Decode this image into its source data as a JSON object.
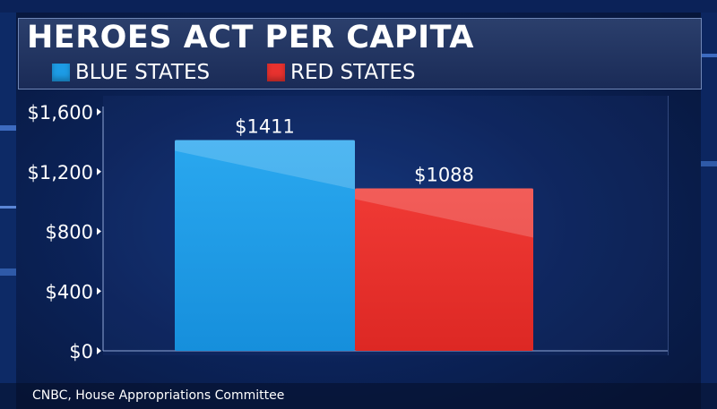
{
  "chart_data": {
    "type": "bar",
    "title": "HEROES ACT PER CAPITA",
    "categories": [
      "BLUE STATES",
      "RED STATES"
    ],
    "values": [
      1411,
      1088
    ],
    "value_labels": [
      "$1411",
      "$1088"
    ],
    "yticks": [
      0,
      400,
      800,
      1200,
      1600
    ],
    "ytick_labels": [
      "$0",
      "$400",
      "$800",
      "$1,200",
      "$1,600"
    ],
    "ylim": [
      0,
      1600
    ],
    "xlabel": "",
    "ylabel": "",
    "legend": {
      "placement": "top-left",
      "entries": [
        {
          "label": "BLUE STATES",
          "color": "#1d9ce6"
        },
        {
          "label": "RED STATES",
          "color": "#e8322f"
        }
      ]
    },
    "colors": [
      "#1d9ce6",
      "#e8322f"
    ],
    "grid": false
  },
  "source": "CNBC, House Appropriations Committee"
}
